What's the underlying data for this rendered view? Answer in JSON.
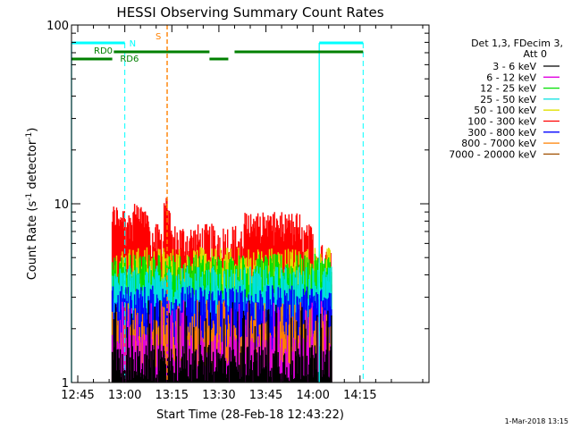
{
  "chart_data": {
    "type": "area",
    "title": "HESSI Observing Summary Count Rates",
    "xlabel": "Start Time (28-Feb-18 12:43:22)",
    "ylabel_main": "Count Rate (s",
    "ylabel_sup1": "-1",
    "ylabel_mid": " detector",
    "ylabel_sup2": "-1",
    "ylabel_end": ")",
    "yscale": "log",
    "ylim": [
      1,
      100
    ],
    "x_range_minutes": [
      -17,
      97
    ],
    "x_ticks": [
      {
        "minute": -15,
        "label": "12:45"
      },
      {
        "minute": 0,
        "label": "13:00"
      },
      {
        "minute": 15,
        "label": "13:15"
      },
      {
        "minute": 30,
        "label": "13:30"
      },
      {
        "minute": 45,
        "label": "13:45"
      },
      {
        "minute": 60,
        "label": "14:00"
      },
      {
        "minute": 75,
        "label": "14:15"
      }
    ],
    "y_ticks": [
      {
        "value": 1,
        "label": "1"
      },
      {
        "value": 10,
        "label": "10"
      },
      {
        "value": 100,
        "label": "100"
      }
    ],
    "data_span_minutes": [
      -4,
      66
    ],
    "legend_header": [
      "Det 1,3, FDecim 3,",
      "Att 0"
    ],
    "series": [
      {
        "name": "3 - 6 keV",
        "color": "#000000",
        "typical": 1.3
      },
      {
        "name": "6 - 12 keV",
        "color": "#e000e0",
        "typical": 1.5
      },
      {
        "name": "12 - 25 keV",
        "color": "#00e000",
        "typical": 4.2
      },
      {
        "name": "25 - 50 keV",
        "color": "#00e0e0",
        "typical": 3.6
      },
      {
        "name": "50 - 100 keV",
        "color": "#e0e000",
        "typical": 4.6
      },
      {
        "name": "100 - 300 keV",
        "color": "#ff0000",
        "typical": 6.2
      },
      {
        "name": "300 - 800 keV",
        "color": "#0000ff",
        "typical": 2.8
      },
      {
        "name": "800 - 7000 keV",
        "color": "#ff8000",
        "typical": 1.8
      },
      {
        "name": "7000 - 20000 keV",
        "color": "#a05000",
        "typical": 1.0
      }
    ],
    "annotations": {
      "night_bars": [
        {
          "start": -17,
          "end": 0,
          "label": "N"
        },
        {
          "start": 62,
          "end": 76,
          "label": ""
        }
      ],
      "saa_line": {
        "minute": 13.5,
        "label": "S"
      },
      "decimation_bars": [
        {
          "start": -17,
          "end": -4,
          "label": "RD0"
        },
        {
          "start": -3.5,
          "end": 27,
          "label": "RD6"
        },
        {
          "start": 27,
          "end": 33,
          "label": ""
        },
        {
          "start": 35,
          "end": 76,
          "label": ""
        }
      ],
      "cyan_dashed_lines": [
        0,
        76
      ],
      "cyan_solid_lines": [
        -17,
        62
      ]
    }
  },
  "timestamp": "1-Mar-2018 13:15"
}
